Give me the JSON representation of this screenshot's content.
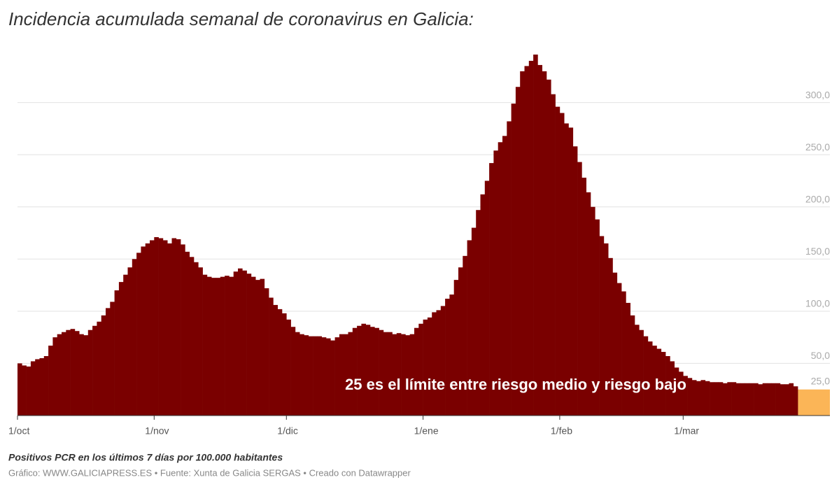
{
  "chart_data": {
    "type": "bar",
    "title": "Incidencia acumulada semanal de coronavirus en Galicia:",
    "subtitle": "Positivos PCR en los últimos 7 días por 100.000 habitantes",
    "note": "Gráfico: WWW.GALICIAPRESS.ES • Fuente: Xunta de Galicia SERGAS • Creado con Datawrapper",
    "annotation": "25 es el límite entre riesgo medio y riesgo bajo",
    "threshold": {
      "value": 25,
      "label": "25,0"
    },
    "threshold_color": "#fbb557",
    "color": "#7a0000",
    "grid": true,
    "ylim": [
      0,
      346
    ],
    "yticks": [
      {
        "value": 50,
        "label": "50,0"
      },
      {
        "value": 100,
        "label": "100,0"
      },
      {
        "value": 150,
        "label": "150,0"
      },
      {
        "value": 200,
        "label": "200,0"
      },
      {
        "value": 250,
        "label": "250,0"
      },
      {
        "value": 300,
        "label": "300,0"
      }
    ],
    "categories": [
      "1/oct",
      null,
      null,
      null,
      null,
      null,
      null,
      null,
      null,
      null,
      null,
      null,
      null,
      null,
      null,
      null,
      null,
      null,
      null,
      null,
      null,
      null,
      null,
      null,
      null,
      null,
      null,
      null,
      null,
      null,
      null,
      "1/nov",
      null,
      null,
      null,
      null,
      null,
      null,
      null,
      null,
      null,
      null,
      null,
      null,
      null,
      null,
      null,
      null,
      null,
      null,
      null,
      null,
      null,
      null,
      null,
      null,
      null,
      null,
      null,
      null,
      null,
      "1/dic",
      null,
      null,
      null,
      null,
      null,
      null,
      null,
      null,
      null,
      null,
      null,
      null,
      null,
      null,
      null,
      null,
      null,
      null,
      null,
      null,
      null,
      null,
      null,
      null,
      null,
      null,
      null,
      null,
      null,
      null,
      "1/ene",
      null,
      null,
      null,
      null,
      null,
      null,
      null,
      null,
      null,
      null,
      null,
      null,
      null,
      null,
      null,
      null,
      null,
      null,
      null,
      null,
      null,
      null,
      null,
      null,
      null,
      null,
      null,
      null,
      null,
      null,
      "1/feb",
      null,
      null,
      null,
      null,
      null,
      null,
      null,
      null,
      null,
      null,
      null,
      null,
      null,
      null,
      null,
      null,
      null,
      null,
      null,
      null,
      null,
      null,
      null,
      null,
      null,
      null,
      null,
      "1/mar",
      null,
      null,
      null,
      null,
      null,
      null,
      null,
      null,
      null,
      null,
      null,
      null,
      null,
      null,
      null,
      null,
      null,
      null,
      null,
      null,
      null,
      null,
      null,
      null,
      null
    ],
    "values": [
      50,
      48,
      47,
      52,
      54,
      55,
      57,
      67,
      75,
      78,
      80,
      82,
      83,
      81,
      78,
      77,
      82,
      86,
      90,
      96,
      103,
      109,
      120,
      128,
      135,
      142,
      150,
      156,
      162,
      165,
      168,
      171,
      170,
      168,
      165,
      170,
      169,
      164,
      157,
      152,
      147,
      142,
      135,
      133,
      132,
      132,
      133,
      134,
      133,
      138,
      141,
      139,
      136,
      133,
      130,
      131,
      122,
      113,
      106,
      102,
      98,
      92,
      85,
      80,
      78,
      77,
      76,
      76,
      76,
      75,
      74,
      72,
      75,
      78,
      78,
      80,
      84,
      86,
      88,
      87,
      85,
      84,
      82,
      80,
      80,
      78,
      79,
      78,
      77,
      78,
      84,
      88,
      92,
      94,
      99,
      101,
      105,
      112,
      116,
      130,
      142,
      153,
      168,
      180,
      197,
      212,
      225,
      242,
      254,
      262,
      268,
      282,
      299,
      315,
      330,
      335,
      340,
      346,
      336,
      330,
      322,
      308,
      296,
      290,
      280,
      276,
      258,
      243,
      228,
      214,
      200,
      188,
      172,
      165,
      151,
      137,
      127,
      119,
      108,
      96,
      87,
      82,
      76,
      71,
      67,
      64,
      61,
      57,
      52,
      46,
      42,
      38,
      36,
      34,
      33,
      34,
      33,
      32,
      32,
      32,
      31,
      32,
      32,
      31,
      31,
      31,
      31,
      31,
      30,
      31,
      31,
      31,
      31,
      30,
      30,
      31,
      28
    ]
  }
}
